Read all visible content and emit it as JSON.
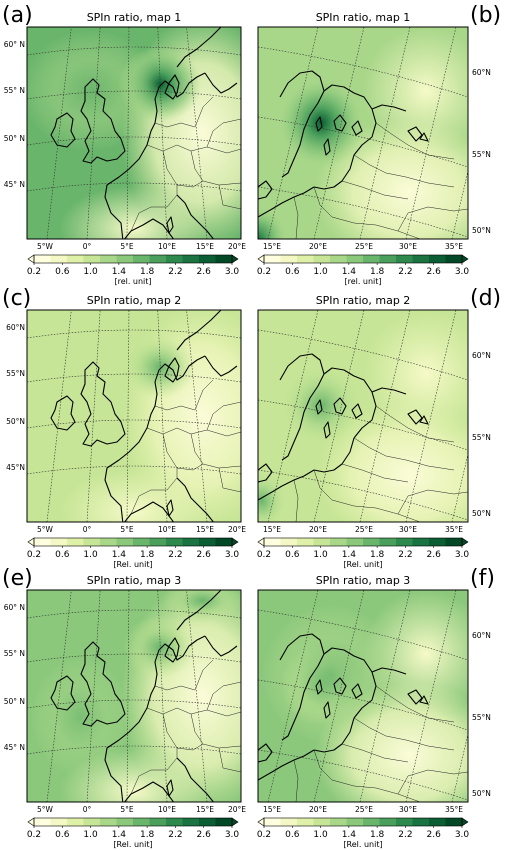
{
  "panels": [
    {
      "label": "(a)",
      "title": "SPIn ratio, map 1",
      "region": "west",
      "lat_labels": [
        "60° N",
        "55° N",
        "50° N",
        "45° N"
      ],
      "lon_labels": [
        "5°W",
        "0°",
        "5°E",
        "10°E",
        "15°E",
        "20°E"
      ],
      "unit": "[rel. unit]"
    },
    {
      "label": "(b)",
      "title": "SPIn ratio, map 1",
      "region": "east",
      "lat_labels": [
        "60°N",
        "55°N",
        "50°N"
      ],
      "lon_labels": [
        "15°E",
        "20°E",
        "25°E",
        "30°E",
        "35°E"
      ],
      "unit": "[rel. unit]"
    },
    {
      "label": "(c)",
      "title": "SPIn ratio, map 2",
      "region": "west",
      "lat_labels": [
        "60°N",
        "55°N",
        "50°N",
        "45°N"
      ],
      "lon_labels": [
        "5°W",
        "0°",
        "5°E",
        "10°E",
        "15°E",
        "20°E"
      ],
      "unit": "[Rel. unit]"
    },
    {
      "label": "(d)",
      "title": "SPIn ratio, map 2",
      "region": "east",
      "lat_labels": [
        "60°N",
        "55°N",
        "50°N"
      ],
      "lon_labels": [
        "15°E",
        "20°E",
        "25°E",
        "30°E",
        "35°E"
      ],
      "unit": "[Rel. unit]"
    },
    {
      "label": "(e)",
      "title": "SPIn ratio, map 3",
      "region": "west",
      "lat_labels": [
        "60° N",
        "55° N",
        "50° N",
        "45° N"
      ],
      "lon_labels": [
        "5°W",
        "0°",
        "5°E",
        "10°E",
        "15°E",
        "20°E"
      ],
      "unit": "[Rel. unit]"
    },
    {
      "label": "(f)",
      "title": "SPIn ratio, map 3",
      "region": "east",
      "lat_labels": [
        "60°N",
        "55°N",
        "50°N"
      ],
      "lon_labels": [
        "15°E",
        "20°E",
        "25°E",
        "30°E",
        "35°E"
      ],
      "unit": "[Rel. unit]"
    }
  ],
  "colorbar": {
    "ticks": [
      "0.2",
      "0.6",
      "1.0",
      "1.4",
      "1.8",
      "2.2",
      "2.6",
      "3.0"
    ],
    "range": [
      0.2,
      3.0
    ],
    "colors": [
      "#ffffe0",
      "#f3f8c4",
      "#dff0a8",
      "#c6e596",
      "#a9d78a",
      "#8bc87c",
      "#6ab56c",
      "#4a9f5c",
      "#2e8a4c",
      "#1a7340",
      "#0b5d33",
      "#004826"
    ]
  },
  "field_values": {
    "map1_west": {
      "background": 1.7,
      "hotspot": 2.8,
      "east_low": 0.8
    },
    "map1_east": {
      "background": 1.3,
      "hotspot": 2.9,
      "southeast_low": 0.6
    },
    "map2_west": {
      "background": 1.0,
      "hotspot": 1.9,
      "east_low": 0.8
    },
    "map2_east": {
      "background": 0.9,
      "hotspot": 1.6,
      "southeast_low": 0.5
    },
    "map3_west": {
      "background": 1.5,
      "hotspot": 1.9,
      "east_low": 0.8
    },
    "map3_east": {
      "background": 1.5,
      "hotspot": 2.3,
      "southeast_low": 0.6
    }
  }
}
